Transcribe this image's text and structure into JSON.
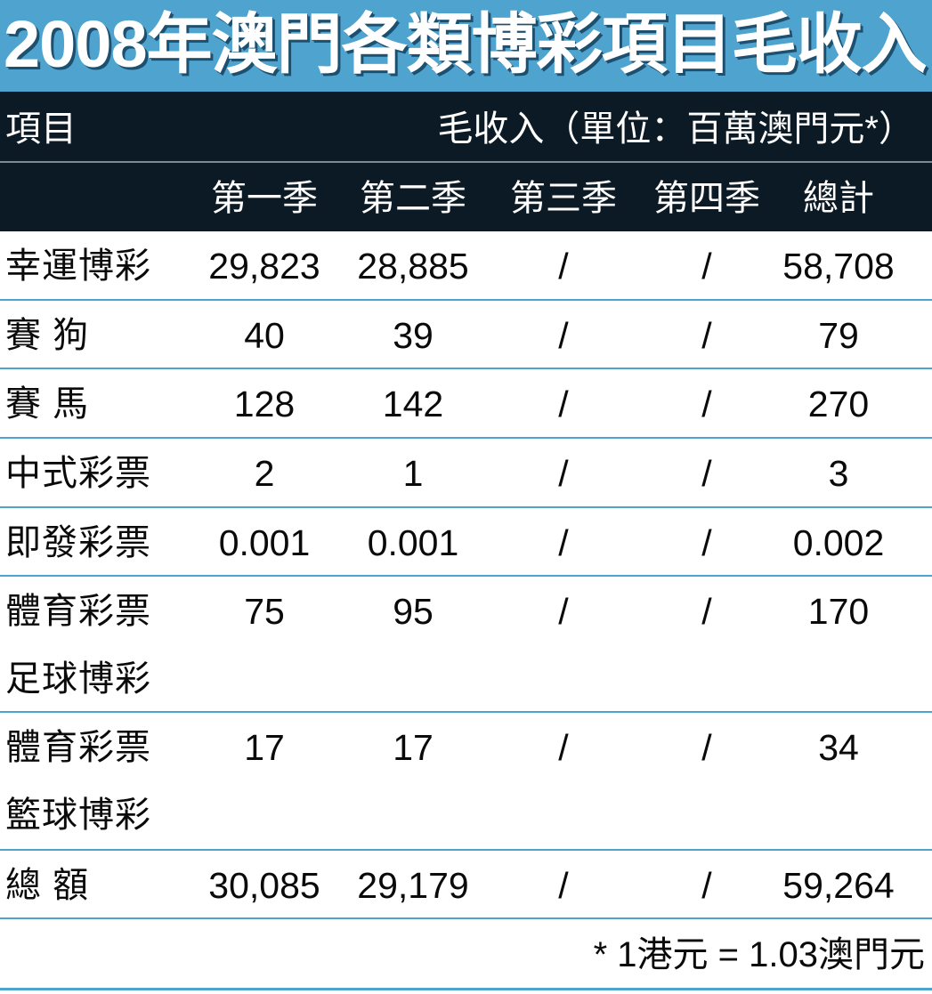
{
  "title": "2008年澳門各類博彩項目毛收入",
  "header": {
    "item_label": "項目",
    "unit_label": "毛收入（單位：百萬澳門元*）"
  },
  "chart_data": {
    "type": "table",
    "title": "2008年澳門各類博彩項目毛收入",
    "columns": [
      "第一季",
      "第二季",
      "第三季",
      "第四季",
      "總計"
    ],
    "rows": [
      {
        "name": [
          "幸運博彩"
        ],
        "values": [
          "29,823",
          "28,885",
          "/",
          "/",
          "58,708"
        ]
      },
      {
        "name": [
          "賽 狗"
        ],
        "values": [
          "40",
          "39",
          "/",
          "/",
          "79"
        ]
      },
      {
        "name": [
          "賽 馬"
        ],
        "values": [
          "128",
          "142",
          "/",
          "/",
          "270"
        ]
      },
      {
        "name": [
          "中式彩票"
        ],
        "values": [
          "2",
          "1",
          "/",
          "/",
          "3"
        ]
      },
      {
        "name": [
          "即發彩票"
        ],
        "values": [
          "0.001",
          "0.001",
          "/",
          "/",
          "0.002"
        ]
      },
      {
        "name": [
          "體育彩票",
          "足球博彩"
        ],
        "values": [
          "75",
          "95",
          "/",
          "/",
          "170"
        ]
      },
      {
        "name": [
          "體育彩票",
          "籃球博彩"
        ],
        "values": [
          "17",
          "17",
          "/",
          "/",
          "34"
        ]
      },
      {
        "name": [
          "總 額"
        ],
        "values": [
          "30,085",
          "29,179",
          "/",
          "/",
          "59,264"
        ]
      }
    ]
  },
  "footnote": "* 1港元 = 1.03澳門元",
  "colors": {
    "title_bg": "#4fa3cf",
    "header_bg": "#0b1a24",
    "rule": "#4fa3cf"
  }
}
